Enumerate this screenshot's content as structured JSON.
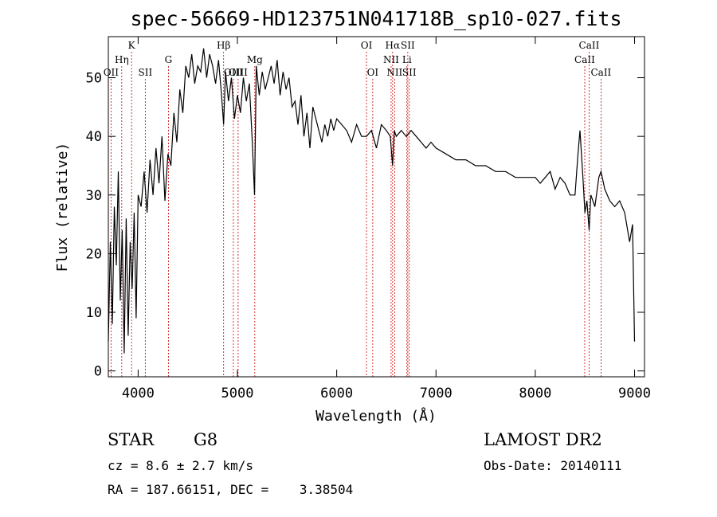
{
  "chart_data": {
    "type": "line",
    "title": "spec-56669-HD123751N041718B_sp10-027.fits",
    "xlabel": "Wavelength (Å)",
    "ylabel": "Flux (relative)",
    "xlim": [
      3700,
      9100
    ],
    "ylim": [
      -1,
      57
    ],
    "xticks": [
      4000,
      5000,
      6000,
      7000,
      8000,
      9000
    ],
    "yticks": [
      0,
      10,
      20,
      30,
      40,
      50
    ],
    "grid": false,
    "series": [
      {
        "color": "#000000",
        "x": [
          3700,
          3720,
          3740,
          3760,
          3780,
          3800,
          3820,
          3840,
          3860,
          3880,
          3900,
          3920,
          3940,
          3960,
          3980,
          4000,
          4030,
          4060,
          4090,
          4120,
          4150,
          4180,
          4210,
          4240,
          4270,
          4300,
          4330,
          4360,
          4390,
          4420,
          4450,
          4480,
          4510,
          4540,
          4570,
          4600,
          4630,
          4660,
          4690,
          4720,
          4750,
          4780,
          4810,
          4840,
          4861,
          4880,
          4910,
          4940,
          4970,
          5000,
          5030,
          5060,
          5090,
          5120,
          5150,
          5172,
          5190,
          5220,
          5250,
          5280,
          5310,
          5340,
          5370,
          5400,
          5430,
          5460,
          5490,
          5520,
          5550,
          5580,
          5610,
          5640,
          5670,
          5700,
          5730,
          5760,
          5790,
          5820,
          5850,
          5880,
          5910,
          5940,
          5970,
          6000,
          6050,
          6100,
          6150,
          6200,
          6250,
          6300,
          6350,
          6400,
          6450,
          6500,
          6540,
          6563,
          6580,
          6600,
          6650,
          6700,
          6750,
          6800,
          6850,
          6900,
          6950,
          7000,
          7100,
          7200,
          7300,
          7400,
          7500,
          7600,
          7700,
          7800,
          7900,
          8000,
          8050,
          8100,
          8150,
          8200,
          8250,
          8300,
          8350,
          8400,
          8430,
          8450,
          8480,
          8500,
          8520,
          8542,
          8560,
          8600,
          8640,
          8662,
          8700,
          8750,
          8800,
          8850,
          8900,
          8950,
          8980,
          9000
        ],
        "y": [
          5,
          22,
          8,
          28,
          18,
          34,
          12,
          24,
          3,
          26,
          6,
          22,
          14,
          27,
          9,
          30,
          28,
          34,
          27,
          36,
          30,
          38,
          32,
          40,
          29,
          37,
          35,
          44,
          39,
          48,
          44,
          52,
          50,
          54,
          49,
          52,
          51,
          55,
          50,
          54,
          52,
          49,
          53,
          47,
          42,
          51,
          46,
          50,
          43,
          47,
          44,
          50,
          46,
          49,
          39,
          30,
          52,
          47,
          51,
          48,
          50,
          52,
          49,
          53,
          47,
          51,
          48,
          50,
          45,
          46,
          42,
          47,
          40,
          44,
          38,
          45,
          43,
          41,
          39,
          42,
          40,
          43,
          41,
          43,
          42,
          41,
          39,
          42,
          40,
          40,
          41,
          38,
          42,
          41,
          40,
          35,
          41,
          40,
          41,
          40,
          41,
          40,
          39,
          38,
          39,
          38,
          37,
          36,
          36,
          35,
          35,
          34,
          34,
          33,
          33,
          33,
          32,
          33,
          34,
          31,
          33,
          32,
          30,
          30,
          37,
          41,
          33,
          27,
          29,
          24,
          30,
          28,
          33,
          34,
          31,
          29,
          28,
          29,
          27,
          22,
          25,
          5
        ]
      }
    ],
    "line_markers": [
      {
        "label": "OII",
        "x": 3727,
        "row": 2
      },
      {
        "label": "Hη",
        "x": 3835,
        "row": 1
      },
      {
        "label": "K",
        "x": 3934,
        "row": 0
      },
      {
        "label": "SII",
        "x": 4072,
        "row": 2
      },
      {
        "label": "G",
        "x": 4305,
        "row": 1
      },
      {
        "label": "Hβ",
        "x": 4861,
        "row": 0
      },
      {
        "label": "OIII",
        "x": 4959,
        "row": 2
      },
      {
        "label": "OIII",
        "x": 5007,
        "row": 2
      },
      {
        "label": "Mg",
        "x": 5175,
        "row": 1
      },
      {
        "label": "OI",
        "x": 6300,
        "row": 0
      },
      {
        "label": "OI",
        "x": 6363,
        "row": 2
      },
      {
        "label": "NII",
        "x": 6548,
        "row": 1
      },
      {
        "label": "Hα",
        "x": 6563,
        "row": 0
      },
      {
        "label": "NII",
        "x": 6583,
        "row": 2
      },
      {
        "label": "Li",
        "x": 6707,
        "row": 1
      },
      {
        "label": "SII",
        "x": 6716,
        "row": 0
      },
      {
        "label": "SII",
        "x": 6731,
        "row": 2
      },
      {
        "label": "CaII",
        "x": 8498,
        "row": 1
      },
      {
        "label": "CaII",
        "x": 8542,
        "row": 0
      },
      {
        "label": "CaII",
        "x": 8662,
        "row": 2
      }
    ]
  },
  "info": {
    "object_class": "STAR",
    "subclass": "G8",
    "survey": "LAMOST DR2",
    "cz": "cz = 8.6 ± 2.7 km/s",
    "obs_date": "Obs-Date: 20140111",
    "coords": "RA = 187.66151, DEC =    3.38504"
  }
}
